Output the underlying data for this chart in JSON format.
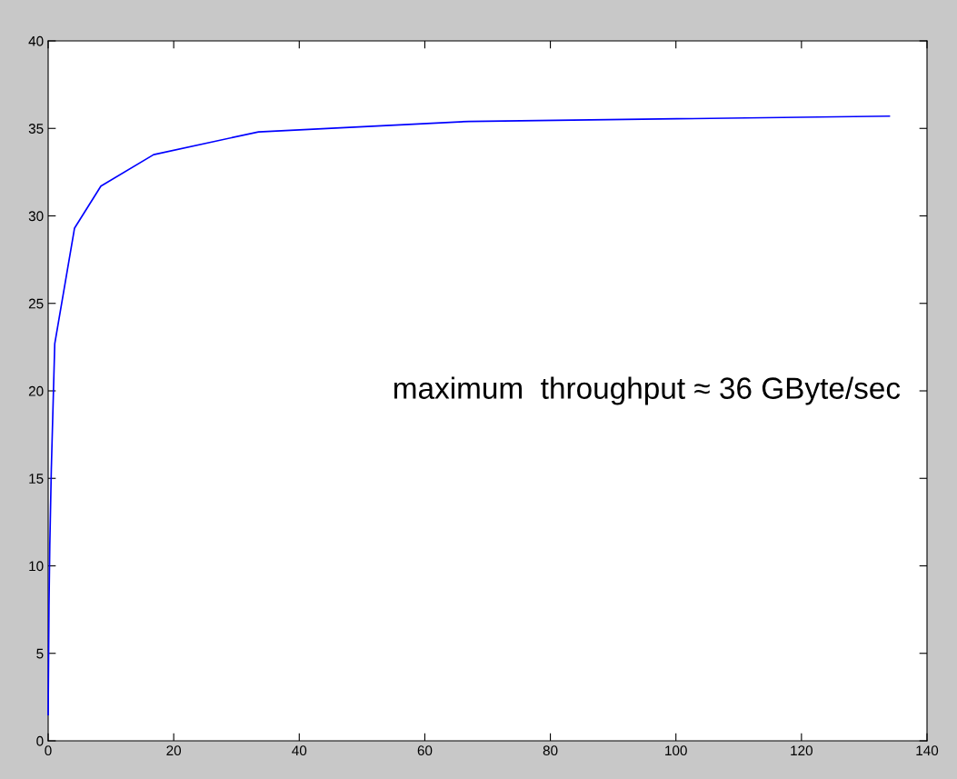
{
  "chart_data": {
    "type": "line",
    "x": [
      0,
      0.13,
      0.26,
      0.5,
      1.05,
      4.2,
      8.4,
      16.8,
      33.5,
      67,
      134
    ],
    "series": [
      {
        "color": "#0000ff",
        "values": [
          1.5,
          7.7,
          11.2,
          15.5,
          22.7,
          29.3,
          31.7,
          33.5,
          34.8,
          35.4,
          35.7
        ]
      }
    ],
    "xlim": [
      0,
      140
    ],
    "xticks": [
      0,
      20,
      40,
      60,
      80,
      100,
      120,
      140
    ],
    "ylim": [
      0,
      40
    ],
    "yticks": [
      0,
      5,
      10,
      15,
      20,
      25,
      30,
      35,
      40
    ],
    "annotations": [
      "maximum  throughput ≈ 36 GByte/sec"
    ],
    "grid": false,
    "legend": false
  }
}
